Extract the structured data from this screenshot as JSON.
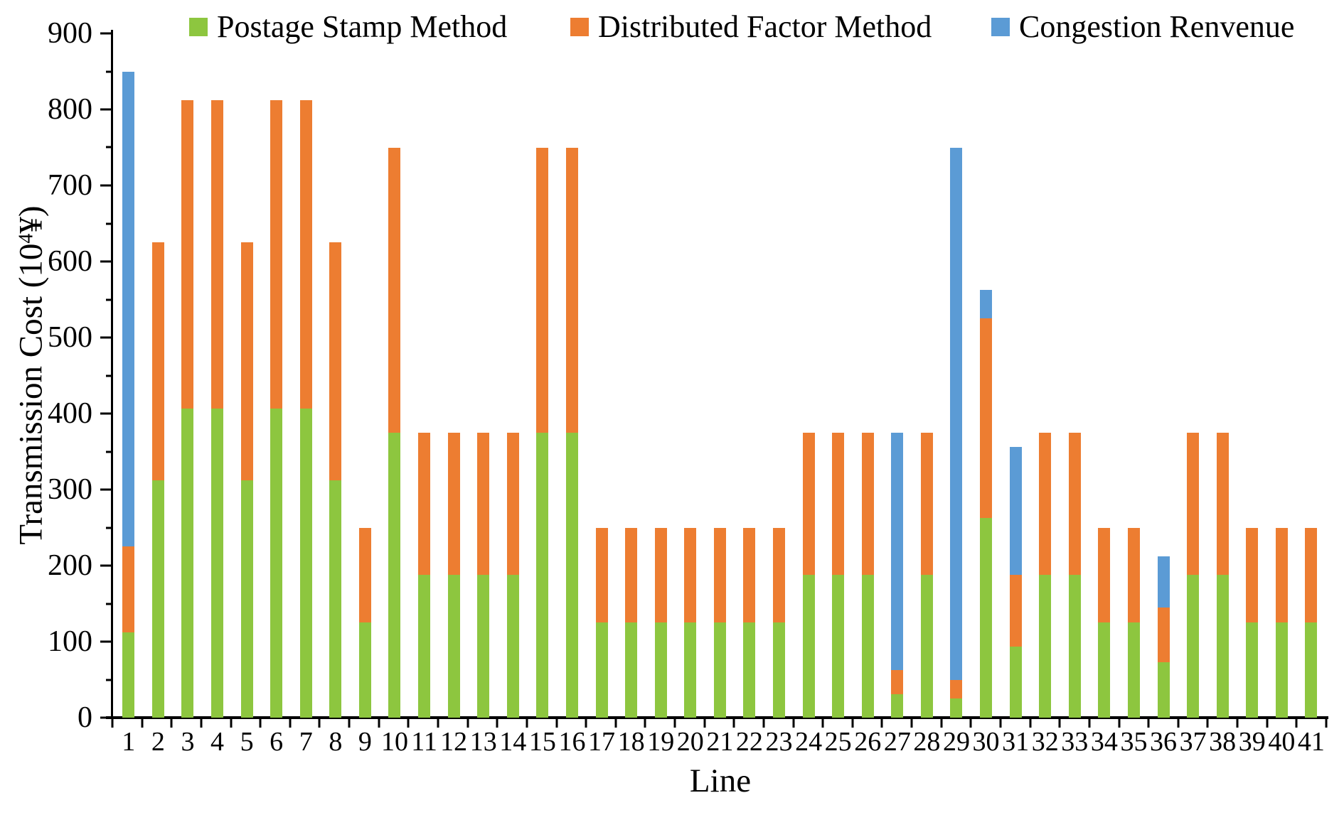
{
  "chart_data": {
    "type": "bar",
    "stacked": true,
    "title": "",
    "xlabel": "Line",
    "ylabel": "Transmission Cost (10⁴¥)",
    "ylabel_parts": {
      "prefix": "Transmission Cost (10",
      "superscript": "4",
      "suffix": "¥)"
    },
    "ylim": [
      0,
      900
    ],
    "yticks": [
      0,
      100,
      200,
      300,
      400,
      500,
      600,
      700,
      800,
      900
    ],
    "minor_ytick_step": 50,
    "grid": false,
    "legend_position": "top",
    "background": "#ffffff",
    "axis_color": "#000000",
    "categories": [
      "1",
      "2",
      "3",
      "4",
      "5",
      "6",
      "7",
      "8",
      "9",
      "10",
      "11",
      "12",
      "13",
      "14",
      "15",
      "16",
      "17",
      "18",
      "19",
      "20",
      "21",
      "22",
      "23",
      "24",
      "25",
      "26",
      "27",
      "28",
      "29",
      "30",
      "31",
      "32",
      "33",
      "34",
      "35",
      "36",
      "37",
      "38",
      "39",
      "40",
      "41"
    ],
    "series": [
      {
        "name": "Postage Stamp Method",
        "color": "#8DC63F",
        "values": [
          112.5,
          312.5,
          406.25,
          406.25,
          312.5,
          406.25,
          406.25,
          312.5,
          125,
          375,
          187.5,
          187.5,
          187.5,
          187.5,
          375,
          375,
          125,
          125,
          125,
          125,
          125,
          125,
          125,
          187.5,
          187.5,
          187.5,
          31.25,
          187.5,
          25,
          262.5,
          93.75,
          187.5,
          187.5,
          125,
          125,
          72.5,
          187.5,
          187.5,
          125,
          125,
          125
        ]
      },
      {
        "name": "Distributed Factor Method",
        "color": "#ED7D31",
        "values": [
          112.5,
          312.5,
          406.25,
          406.25,
          312.5,
          406.25,
          406.25,
          312.5,
          125,
          375,
          187.5,
          187.5,
          187.5,
          187.5,
          375,
          375,
          125,
          125,
          125,
          125,
          125,
          125,
          125,
          187.5,
          187.5,
          187.5,
          31.25,
          187.5,
          25,
          262.5,
          93.75,
          187.5,
          187.5,
          125,
          125,
          72.5,
          187.5,
          187.5,
          125,
          125,
          125
        ]
      },
      {
        "name": "Congestion Renvenue",
        "color": "#5B9BD5",
        "values": [
          625,
          0,
          0,
          0,
          0,
          0,
          0,
          0,
          0,
          0,
          0,
          0,
          0,
          0,
          0,
          0,
          0,
          0,
          0,
          0,
          0,
          0,
          0,
          0,
          0,
          0,
          312.5,
          0,
          700,
          37.5,
          168.75,
          0,
          0,
          0,
          0,
          67.5,
          0,
          0,
          0,
          0,
          0
        ]
      }
    ]
  }
}
